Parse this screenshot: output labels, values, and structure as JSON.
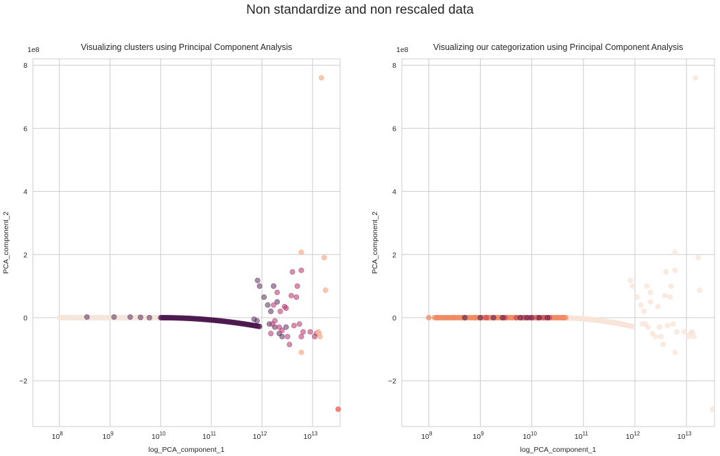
{
  "figure": {
    "suptitle": "Non standardize and non rescaled data"
  },
  "chart_data": [
    {
      "type": "scatter",
      "title": "Visualizing clusters using Principal Component Analysis",
      "xlabel": "log_PCA_component_1",
      "ylabel": "PCA_component_2",
      "y_offset_label": "1e8",
      "xscale": "log",
      "xlim": [
        30000000.0,
        35000000000000.0
      ],
      "ylim": [
        -3.45,
        8.2
      ],
      "x_ticks": [
        {
          "value": 100000000.0,
          "exp": "8"
        },
        {
          "value": 1000000000.0,
          "exp": "9"
        },
        {
          "value": 10000000000.0,
          "exp": "10"
        },
        {
          "value": 100000000000.0,
          "exp": "11"
        },
        {
          "value": 1000000000000.0,
          "exp": "12"
        },
        {
          "value": 10000000000000.0,
          "exp": "13"
        }
      ],
      "y_ticks": [
        -2,
        0,
        2,
        4,
        6,
        8
      ],
      "grid": true,
      "series": [
        {
          "color": "#f5e6db",
          "opacity": 0.8,
          "points": [
            [
              100000000.0,
              0.0
            ],
            [
              150000000.0,
              0.0
            ],
            [
              220000000.0,
              0.0
            ],
            [
              300000000.0,
              0.0
            ],
            [
              400000000.0,
              0.0
            ],
            [
              550000000.0,
              0.0
            ],
            [
              700000000.0,
              0.0
            ],
            [
              900000000.0,
              0.0
            ],
            [
              1200000000.0,
              0.0
            ],
            [
              1600000000.0,
              0.0
            ],
            [
              2000000000.0,
              0.0
            ],
            [
              2600000000.0,
              0.0
            ],
            [
              3300000000.0,
              0.0
            ],
            [
              4200000000.0,
              0.0
            ],
            [
              5300000000.0,
              0.0
            ],
            [
              6600000000.0,
              0.0
            ],
            [
              8000000000.0,
              0.0
            ],
            [
              10000000000.0,
              0.0
            ]
          ],
          "band": {
            "x0": 100000000.0,
            "x1": 11000000000.0,
            "y0": 0.0,
            "y1": 0.0,
            "n": 60
          }
        },
        {
          "color": "#4d1a4f",
          "opacity": 0.5,
          "points": [
            [
              350000000.0,
              0.02
            ],
            [
              1200000000.0,
              0.02
            ],
            [
              2500000000.0,
              0.02
            ],
            [
              4000000000.0,
              0.01
            ],
            [
              6000000000.0,
              0.0
            ],
            [
              700000000000.0,
              -0.05
            ],
            [
              800000000000.0,
              -0.1
            ],
            [
              820000000000.0,
              1.18
            ],
            [
              900000000000.0,
              1.0
            ],
            [
              1100000000000.0,
              0.65
            ],
            [
              1300000000000.0,
              0.4
            ],
            [
              1400000000000.0,
              -0.2
            ],
            [
              1500000000000.0,
              0.2
            ],
            [
              1700000000000.0,
              1.0
            ],
            [
              1800000000000.0,
              -0.3
            ],
            [
              2000000000000.0,
              0.5
            ],
            [
              2200000000000.0,
              -0.5
            ],
            [
              2500000000000.0,
              -0.6
            ],
            [
              3000000000000.0,
              -0.3
            ]
          ],
          "band": {
            "x0": 10000000000.0,
            "x1": 900000000000.0,
            "y0": 0.0,
            "y1": -0.28,
            "n": 130
          }
        },
        {
          "color": "#b0336a",
          "opacity": 0.55,
          "points": [
            [
              1600000000000.0,
              -0.2
            ],
            [
              1700000000000.0,
              0.4
            ],
            [
              1800000000000.0,
              -0.1
            ],
            [
              2000000000000.0,
              0.8
            ],
            [
              2200000000000.0,
              -0.3
            ],
            [
              2500000000000.0,
              -0.4
            ],
            [
              2800000000000.0,
              0.35
            ],
            [
              3000000000000.0,
              0.3
            ],
            [
              3200000000000.0,
              -0.6
            ],
            [
              3500000000000.0,
              -0.85
            ],
            [
              3800000000000.0,
              0.7
            ],
            [
              4000000000000.0,
              1.45
            ],
            [
              4300000000000.0,
              -0.25
            ],
            [
              4800000000000.0,
              0.65
            ],
            [
              5000000000000.0,
              1.0
            ],
            [
              5500000000000.0,
              -0.2
            ],
            [
              6000000000000.0,
              1.5
            ],
            [
              6000000000000.0,
              -0.6
            ],
            [
              6500000000000.0,
              -0.45
            ],
            [
              9000000000000.0,
              -0.45
            ],
            [
              11000000000000.0,
              -0.6
            ],
            [
              12000000000000.0,
              -0.5
            ],
            [
              1500000000000.0,
              -0.5
            ],
            [
              2300000000000.0,
              0.2
            ]
          ]
        },
        {
          "color": "#f5b89a",
          "opacity": 0.8,
          "points": [
            [
              15000000000000.0,
              7.6
            ],
            [
              17000000000000.0,
              1.9
            ],
            [
              18000000000000.0,
              0.87
            ],
            [
              6000000000000.0,
              2.07
            ],
            [
              6000000000000.0,
              -1.1
            ],
            [
              13000000000000.0,
              -0.45
            ],
            [
              14000000000000.0,
              -0.6
            ],
            [
              13500000000000.0,
              -0.5
            ]
          ]
        },
        {
          "color": "#e8665a",
          "opacity": 0.8,
          "points": [
            [
              32000000000000.0,
              -2.9
            ]
          ]
        }
      ]
    },
    {
      "type": "scatter",
      "title": "Visualizing our categorization using Principal Component Analysis",
      "xlabel": "log_PCA_component_1",
      "ylabel": "PCA_component_2",
      "y_offset_label": "1e8",
      "xscale": "log",
      "xlim": [
        30000000.0,
        35000000000000.0
      ],
      "ylim": [
        -3.45,
        8.2
      ],
      "x_ticks": [
        {
          "value": 100000000.0,
          "exp": "8"
        },
        {
          "value": 1000000000.0,
          "exp": "9"
        },
        {
          "value": 10000000000.0,
          "exp": "10"
        },
        {
          "value": 100000000000.0,
          "exp": "11"
        },
        {
          "value": 1000000000000.0,
          "exp": "12"
        },
        {
          "value": 10000000000000.0,
          "exp": "13"
        }
      ],
      "y_ticks": [
        -2,
        0,
        2,
        4,
        6,
        8
      ],
      "grid": true,
      "series": [
        {
          "color": "#f8e4d8",
          "opacity": 0.75,
          "points": [
            [
              15000000000000.0,
              7.6
            ],
            [
              17000000000000.0,
              1.9
            ],
            [
              18000000000000.0,
              0.87
            ],
            [
              6000000000000.0,
              2.07
            ],
            [
              6000000000000.0,
              -1.1
            ],
            [
              32000000000000.0,
              -2.9
            ],
            [
              820000000000.0,
              1.18
            ],
            [
              900000000000.0,
              1.0
            ],
            [
              1100000000000.0,
              0.65
            ],
            [
              1300000000000.0,
              0.4
            ],
            [
              1400000000000.0,
              -0.2
            ],
            [
              1500000000000.0,
              0.2
            ],
            [
              1700000000000.0,
              1.0
            ],
            [
              1800000000000.0,
              -0.3
            ],
            [
              2000000000000.0,
              0.5
            ],
            [
              2200000000000.0,
              -0.5
            ],
            [
              2500000000000.0,
              -0.6
            ],
            [
              3000000000000.0,
              -0.3
            ],
            [
              1600000000000.0,
              -0.2
            ],
            [
              2000000000000.0,
              0.8
            ],
            [
              2800000000000.0,
              0.35
            ],
            [
              3200000000000.0,
              -0.6
            ],
            [
              3500000000000.0,
              -0.85
            ],
            [
              3800000000000.0,
              0.7
            ],
            [
              4000000000000.0,
              1.45
            ],
            [
              4300000000000.0,
              -0.25
            ],
            [
              4800000000000.0,
              0.65
            ],
            [
              5000000000000.0,
              1.0
            ],
            [
              5500000000000.0,
              -0.2
            ],
            [
              6000000000000.0,
              1.5
            ],
            [
              6500000000000.0,
              -0.45
            ],
            [
              9000000000000.0,
              -0.45
            ],
            [
              11000000000000.0,
              -0.6
            ],
            [
              12000000000000.0,
              -0.5
            ],
            [
              13000000000000.0,
              -0.45
            ],
            [
              14000000000000.0,
              -0.6
            ]
          ],
          "band": {
            "x0": 30000000000.0,
            "x1": 900000000000.0,
            "y0": 0.0,
            "y1": -0.28,
            "n": 90
          }
        },
        {
          "color": "#f08a63",
          "opacity": 0.75,
          "points": [
            [
              100000000.0,
              0.0
            ],
            [
              150000000.0,
              0.0
            ],
            [
              220000000.0,
              0.0
            ],
            [
              300000000.0,
              0.0
            ],
            [
              500000000.0,
              0.0
            ],
            [
              800000000.0,
              0.0
            ],
            [
              1500000000.0,
              0.0
            ],
            [
              3000000000.0,
              0.0
            ],
            [
              6000000000.0,
              0.0
            ],
            [
              12000000000.0,
              0.0
            ],
            [
              20000000000.0,
              0.0
            ],
            [
              30000000000.0,
              0.0
            ],
            [
              40000000000.0,
              0.0
            ]
          ],
          "band": {
            "x0": 130000000.0,
            "x1": 45000000000.0,
            "y0": 0.0,
            "y1": 0.0,
            "n": 70
          }
        },
        {
          "color": "#d04a5a",
          "opacity": 0.7,
          "points": [
            [
              1300000000.0,
              0.0
            ],
            [
              3000000000.0,
              0.0
            ],
            [
              5000000000.0,
              0.0
            ],
            [
              7000000000.0,
              0.0
            ],
            [
              9000000000.0,
              0.0
            ],
            [
              13000000000.0,
              0.0
            ],
            [
              17000000000.0,
              0.0
            ],
            [
              22000000000.0,
              0.0
            ]
          ]
        },
        {
          "color": "#5a2052",
          "opacity": 0.6,
          "points": [
            [
              500000000.0,
              0.0
            ],
            [
              1000000000.0,
              0.0
            ],
            [
              1800000000.0,
              0.0
            ],
            [
              2700000000.0,
              0.0
            ],
            [
              6000000000.0,
              0.0
            ],
            [
              8000000000.0,
              0.0
            ],
            [
              10000000000.0,
              0.0
            ],
            [
              14000000000.0,
              0.0
            ],
            [
              20000000000.0,
              0.0
            ]
          ]
        }
      ]
    }
  ]
}
